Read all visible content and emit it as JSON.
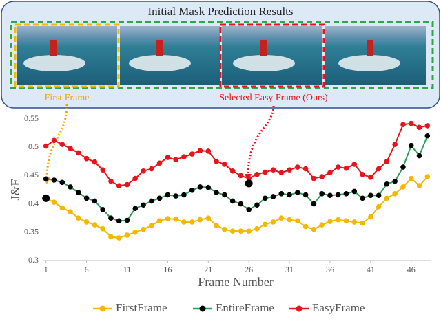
{
  "chart_data": {
    "type": "line",
    "panel_title": "Initial Mask Prediction Results",
    "annotations": [
      "First Frame",
      "Selected Easy Frame (Ours)"
    ],
    "xlabel": "Frame Number",
    "ylabel": "J&F",
    "x": [
      1,
      2,
      3,
      4,
      5,
      6,
      7,
      8,
      9,
      10,
      11,
      12,
      13,
      14,
      15,
      16,
      17,
      18,
      19,
      20,
      21,
      22,
      23,
      24,
      25,
      26,
      27,
      28,
      29,
      30,
      31,
      32,
      33,
      34,
      35,
      36,
      37,
      38,
      39,
      40,
      41,
      42,
      43,
      44,
      45,
      46,
      47,
      48
    ],
    "series": [
      {
        "name": "FirstFrame",
        "color": "#f5b800",
        "line_color": "#f5b800",
        "values": [
          0.41,
          0.403,
          0.393,
          0.386,
          0.375,
          0.368,
          0.363,
          0.356,
          0.342,
          0.34,
          0.345,
          0.35,
          0.355,
          0.362,
          0.37,
          0.374,
          0.373,
          0.368,
          0.368,
          0.372,
          0.375,
          0.362,
          0.355,
          0.352,
          0.352,
          0.352,
          0.356,
          0.364,
          0.368,
          0.375,
          0.372,
          0.37,
          0.36,
          0.355,
          0.363,
          0.369,
          0.372,
          0.37,
          0.368,
          0.366,
          0.377,
          0.395,
          0.41,
          0.418,
          0.43,
          0.445,
          0.432,
          0.448
        ]
      },
      {
        "name": "EntireFrame",
        "color": "#000000",
        "line_color": "#2ca05a",
        "values": [
          0.444,
          0.442,
          0.438,
          0.43,
          0.42,
          0.41,
          0.405,
          0.39,
          0.375,
          0.37,
          0.371,
          0.392,
          0.398,
          0.405,
          0.41,
          0.416,
          0.414,
          0.416,
          0.424,
          0.43,
          0.429,
          0.42,
          0.416,
          0.405,
          0.4,
          0.39,
          0.398,
          0.41,
          0.413,
          0.418,
          0.416,
          0.42,
          0.416,
          0.4,
          0.418,
          0.415,
          0.416,
          0.418,
          0.422,
          0.41,
          0.415,
          0.415,
          0.435,
          0.44,
          0.465,
          0.503,
          0.485,
          0.52
        ]
      },
      {
        "name": "EasyFrame",
        "color": "#e8141c",
        "line_color": "#e8141c",
        "values": [
          0.502,
          0.512,
          0.505,
          0.498,
          0.49,
          0.48,
          0.474,
          0.46,
          0.44,
          0.432,
          0.434,
          0.445,
          0.458,
          0.462,
          0.472,
          0.482,
          0.478,
          0.483,
          0.488,
          0.494,
          0.493,
          0.475,
          0.47,
          0.458,
          0.45,
          0.445,
          0.452,
          0.456,
          0.46,
          0.455,
          0.46,
          0.465,
          0.462,
          0.445,
          0.448,
          0.455,
          0.465,
          0.463,
          0.47,
          0.452,
          0.447,
          0.462,
          0.475,
          0.505,
          0.54,
          0.542,
          0.535,
          0.538
        ]
      }
    ],
    "highlights": [
      {
        "x": 1,
        "value": 0.41
      },
      {
        "x": 26,
        "value": 0.436
      }
    ],
    "xlim": [
      0.6,
      48.4
    ],
    "xticks": [
      1,
      6,
      11,
      16,
      21,
      26,
      31,
      36,
      41,
      46
    ],
    "ylim": [
      0.3,
      0.55
    ],
    "yticks": [
      0.3,
      0.35,
      0.4,
      0.45,
      0.5,
      0.55
    ],
    "grid": false,
    "legend": "bottom"
  }
}
